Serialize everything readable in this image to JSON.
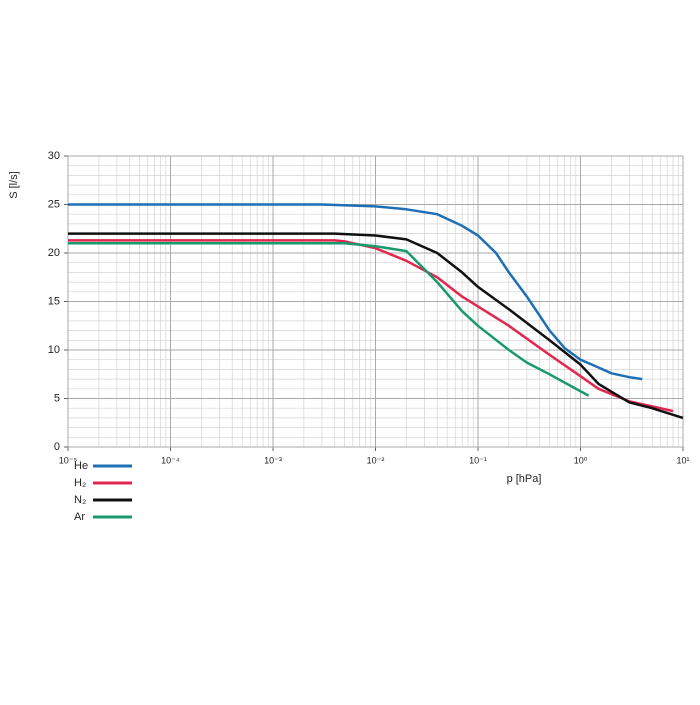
{
  "chart_data": {
    "type": "line",
    "xlabel": "p [hPa]",
    "ylabel": "S [l/s]",
    "xscale": "log",
    "grid": true,
    "xlim": [
      1e-05,
      10
    ],
    "ylim": [
      0,
      30
    ],
    "xticks": [
      {
        "value": 1e-05,
        "label": "10⁻⁵"
      },
      {
        "value": 0.0001,
        "label": "10⁻⁴"
      },
      {
        "value": 0.001,
        "label": "10⁻³"
      },
      {
        "value": 0.01,
        "label": "10⁻²"
      },
      {
        "value": 0.1,
        "label": "10⁻¹"
      },
      {
        "value": 1,
        "label": "10⁰"
      },
      {
        "value": 10,
        "label": "10¹"
      }
    ],
    "yticks": [
      0,
      5,
      10,
      15,
      20,
      25,
      30
    ],
    "series": [
      {
        "name": "He",
        "color": "#1f6fb5",
        "x": [
          1e-05,
          0.001,
          0.003,
          0.01,
          0.02,
          0.04,
          0.07,
          0.1,
          0.15,
          0.2,
          0.3,
          0.5,
          0.7,
          1,
          1.5,
          2,
          3,
          4
        ],
        "values": [
          25,
          25,
          25,
          24.8,
          24.5,
          24,
          22.8,
          21.8,
          20,
          18,
          15.5,
          12,
          10.2,
          9,
          8.2,
          7.6,
          7.2,
          7.0
        ]
      },
      {
        "name": "H₂",
        "color": "#e0284f",
        "x": [
          1e-05,
          0.004,
          0.005,
          0.01,
          0.02,
          0.04,
          0.07,
          0.1,
          0.2,
          0.5,
          1,
          1.5,
          3,
          5,
          8
        ],
        "values": [
          21.3,
          21.3,
          21.2,
          20.5,
          19.2,
          17.5,
          15.5,
          14.5,
          12.5,
          9.5,
          7.3,
          6,
          4.7,
          4.2,
          3.7
        ]
      },
      {
        "name": "N₂",
        "color": "#111111",
        "x": [
          1e-05,
          0.004,
          0.01,
          0.02,
          0.04,
          0.07,
          0.1,
          0.2,
          0.5,
          1,
          1.5,
          3,
          5,
          10
        ],
        "values": [
          22,
          22,
          21.8,
          21.4,
          20,
          18,
          16.5,
          14.2,
          11,
          8.5,
          6.5,
          4.6,
          4,
          3
        ]
      },
      {
        "name": "Ar",
        "color": "#1a9a6c",
        "x": [
          1e-05,
          0.005,
          0.01,
          0.02,
          0.04,
          0.07,
          0.1,
          0.2,
          0.3,
          0.5,
          0.8,
          1.2
        ],
        "values": [
          21,
          21,
          20.7,
          20.2,
          17,
          14,
          12.5,
          10,
          8.7,
          7.5,
          6.3,
          5.3
        ]
      }
    ]
  }
}
